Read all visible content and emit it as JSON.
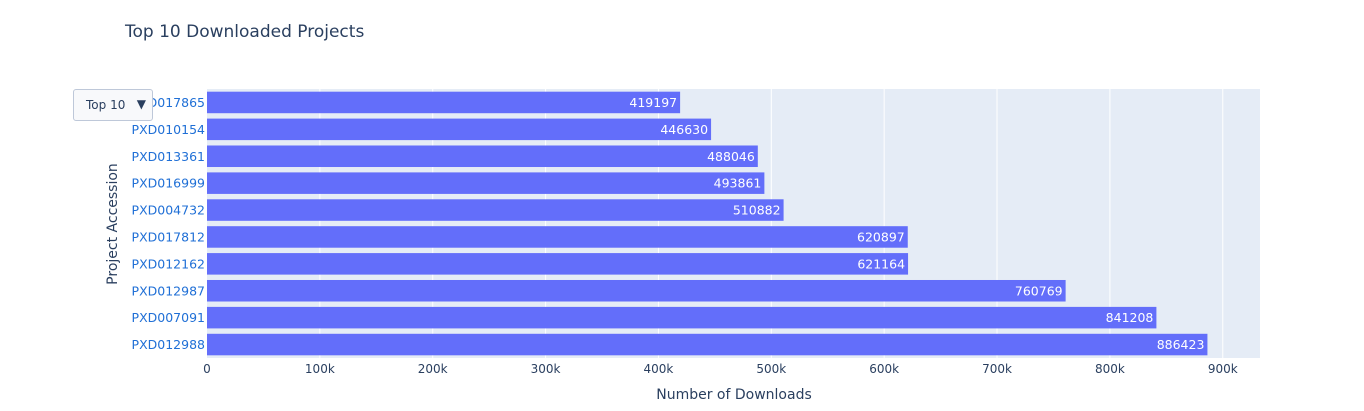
{
  "dropdown": {
    "selected": "Top 10",
    "arrow_icon": "triangle-down-icon"
  },
  "colors": {
    "bar": "#636efa",
    "plot_bg": "#e5ecf6",
    "tick_link": "#1f6fd6",
    "text": "#2a3f5f"
  },
  "chart_data": {
    "type": "bar",
    "orientation": "horizontal",
    "title": "Top 10 Downloaded Projects",
    "xlabel": "Number of Downloads",
    "ylabel": "Project Accession",
    "categories": [
      "PXD017865",
      "PXD010154",
      "PXD013361",
      "PXD016999",
      "PXD004732",
      "PXD017812",
      "PXD012162",
      "PXD012987",
      "PXD007091",
      "PXD012988"
    ],
    "values": [
      419197,
      446630,
      488046,
      493861,
      510882,
      620897,
      621164,
      760769,
      841208,
      886423
    ],
    "data_labels": [
      "419197",
      "446630",
      "488046",
      "493861",
      "510882",
      "620897",
      "621164",
      "760769",
      "841208",
      "886423"
    ],
    "xlim": [
      0,
      933000
    ],
    "xticks": [
      0,
      100000,
      200000,
      300000,
      400000,
      500000,
      600000,
      700000,
      800000,
      900000
    ],
    "xtick_labels": [
      "0",
      "100k",
      "200k",
      "300k",
      "400k",
      "500k",
      "600k",
      "700k",
      "800k",
      "900k"
    ],
    "grid": true,
    "legend": "none"
  }
}
